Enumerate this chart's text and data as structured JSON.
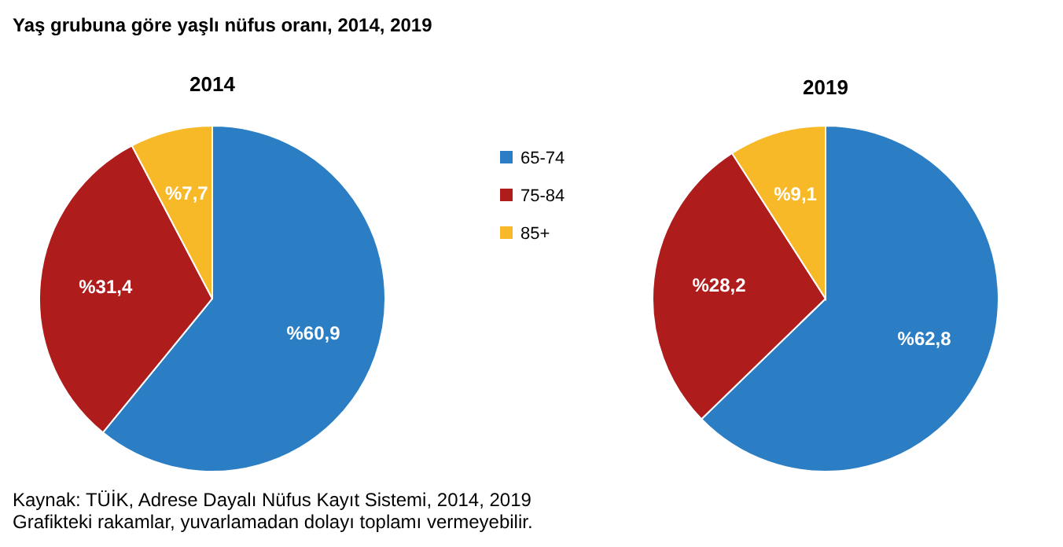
{
  "chart_data": [
    {
      "type": "pie",
      "title": "Yaş grubuna göre yaşlı nüfus oranı, 2014, 2019",
      "subtitle": "2014",
      "categories": [
        "65-74",
        "75-84",
        "85+"
      ],
      "values": [
        60.9,
        31.4,
        7.7
      ],
      "value_labels": [
        "%60,9",
        "%31,4",
        "%7,7"
      ],
      "colors": [
        "#2b7ec4",
        "#ae1c1c",
        "#f7b928"
      ],
      "legend": "right",
      "annotations": [
        "Kaynak: TÜİK, Adrese Dayalı Nüfus Kayıt Sistemi, 2014, 2019",
        "Grafikteki rakamlar, yuvarlamadan dolayı toplamı vermeyebilir."
      ]
    },
    {
      "type": "pie",
      "title": "2019",
      "categories": [
        null,
        null,
        null
      ],
      "values": [
        62.8,
        28.2,
        9.1
      ],
      "value_labels": [
        "%62,8",
        "%28,2",
        "%9,1"
      ],
      "colors": [
        "#2b7ec4",
        "#ae1c1c",
        "#f7b928"
      ]
    }
  ]
}
